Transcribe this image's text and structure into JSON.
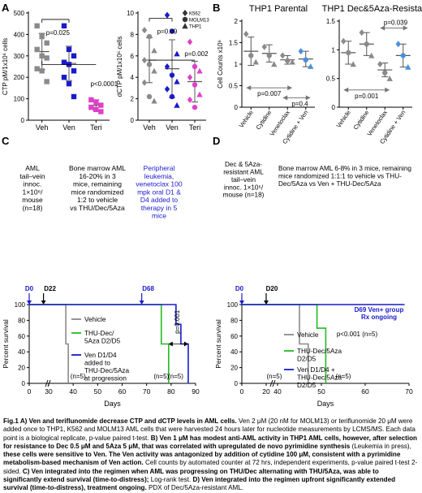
{
  "panels": {
    "A": {
      "letter": "A"
    },
    "B": {
      "letter": "B"
    },
    "C": {
      "letter": "C"
    },
    "D": {
      "letter": "D"
    }
  },
  "colors": {
    "veh": "#8a8a8a",
    "ven": "#1a1acc",
    "teri": "#e040c8",
    "thu": "#22bb22",
    "annot_blue": "#1a1acc"
  },
  "chart_data": [
    {
      "id": "A-left",
      "type": "scatter",
      "ylabel": "CTP pM/1x10⁶ cells",
      "categories": [
        "Veh",
        "Ven",
        "Teri"
      ],
      "ylim": [
        0,
        500
      ],
      "yticks": [
        0,
        100,
        200,
        300,
        400,
        500
      ],
      "series": [
        {
          "category": "Veh",
          "color": "#8a8a8a",
          "marker": "square",
          "values": [
            440,
            390,
            360,
            330,
            300,
            290,
            240,
            230,
            180
          ],
          "mean": 320,
          "sd": 85
        },
        {
          "category": "Ven",
          "color": "#1a1acc",
          "marker": "square",
          "values": [
            440,
            330,
            300,
            270,
            260,
            230,
            200,
            170,
            110
          ],
          "mean": 265,
          "sd": 80
        },
        {
          "category": "Teri",
          "color": "#e040c8",
          "marker": "square",
          "values": [
            95,
            85,
            70,
            60,
            50,
            40
          ],
          "mean": 70,
          "sd": 25
        }
      ],
      "annotations": [
        {
          "text": "p=0.025",
          "x": 1.45,
          "y": 370
        },
        {
          "text": "p<0.0001",
          "x": 2.35,
          "y": 165
        }
      ]
    },
    {
      "id": "A-right",
      "type": "scatter",
      "ylabel": "dCTP pM/1x10⁶ cells",
      "categories": [
        "Veh",
        "Ven",
        "Teri"
      ],
      "ylim": [
        0,
        10
      ],
      "yticks": [
        0,
        2,
        4,
        6,
        8,
        10
      ],
      "legend": [
        {
          "label": "K562",
          "marker": "diamond"
        },
        {
          "label": "MOLM13",
          "marker": "circle"
        },
        {
          "label": "THP1",
          "marker": "triangle"
        }
      ],
      "series": [
        {
          "category": "Veh",
          "color": "#8a8a8a",
          "values": [
            8.4,
            7.8,
            6.5,
            5.6,
            5.2,
            4.6,
            3.5,
            2.2,
            1.8
          ],
          "mean": 5.6,
          "sd": 2.1
        },
        {
          "category": "Ven",
          "color": "#1a1acc",
          "values": [
            9.8,
            8.3,
            6.2,
            5.0,
            4.2,
            3.6,
            2.9,
            2.2,
            1.4
          ],
          "mean": 4.8,
          "sd": 2.7
        },
        {
          "category": "Teri",
          "color": "#e040c8",
          "values": [
            7.3,
            5.0,
            4.6,
            4.0,
            3.3,
            2.4,
            1.9,
            1.2
          ],
          "mean": 3.6,
          "sd": 1.9
        }
      ],
      "annotations": [
        {
          "text": "p=0.09",
          "x": 1.45,
          "y": 8.5
        },
        {
          "text": "p=0.002",
          "x": 2.35,
          "y": 5.8
        }
      ]
    },
    {
      "id": "B-left",
      "type": "scatter",
      "title": "THP1 Parental",
      "ylabel": "Cell Counts x10⁶",
      "categories": [
        "Vehicle",
        "Cytidine",
        "Venetoclax",
        "Cytidine + Ven"
      ],
      "ylim": [
        0,
        2.0
      ],
      "yticks": [
        0,
        0.5,
        1.0,
        1.5,
        2.0
      ],
      "series": [
        {
          "category": "Vehicle",
          "color": "#8a8a8a",
          "values": [
            1.7,
            1.2,
            1.05
          ],
          "mean": 1.3,
          "sd": 0.33
        },
        {
          "category": "Cytidine",
          "color": "#8a8a8a",
          "values": [
            1.4,
            1.2,
            1.0
          ],
          "mean": 1.25,
          "sd": 0.2
        },
        {
          "category": "Venetoclax",
          "color": "#8a8a8a",
          "values": [
            1.2,
            1.08,
            1.05
          ],
          "mean": 1.1,
          "sd": 0.1
        },
        {
          "category": "Cytidine + Ven",
          "color": "#4a90d9",
          "values": [
            1.3,
            1.1,
            0.95
          ],
          "mean": 1.12,
          "sd": 0.18
        }
      ],
      "annotations": [
        {
          "text": "p=0.007"
        },
        {
          "text": "p=0.4"
        }
      ]
    },
    {
      "id": "B-right",
      "type": "scatter",
      "title": "THP1 Dec&5Aza-Resistant",
      "ylabel": "",
      "categories": [
        "Vehicle",
        "Cytidine",
        "Venetoclax",
        "Cytidine + Ven"
      ],
      "ylim": [
        0,
        1.5
      ],
      "yticks": [
        0,
        0.5,
        1.0,
        1.5
      ],
      "series": [
        {
          "category": "Vehicle",
          "color": "#8a8a8a",
          "values": [
            1.15,
            0.95,
            0.75
          ],
          "mean": 0.95,
          "sd": 0.2
        },
        {
          "category": "Cytidine",
          "color": "#8a8a8a",
          "values": [
            1.3,
            1.1,
            0.9
          ],
          "mean": 1.1,
          "sd": 0.2
        },
        {
          "category": "Venetoclax",
          "color": "#8a8a8a",
          "values": [
            0.75,
            0.6,
            0.5
          ],
          "mean": 0.65,
          "sd": 0.12
        },
        {
          "category": "Cytidine + Ven",
          "color": "#4a90d9",
          "values": [
            1.1,
            0.9,
            0.7
          ],
          "mean": 0.9,
          "sd": 0.2
        }
      ],
      "annotations": [
        {
          "text": "p=0.039"
        },
        {
          "text": "p=0.001"
        }
      ]
    },
    {
      "id": "C",
      "type": "line",
      "xlabel": "Days",
      "ylabel": "Percent survival",
      "xlim": [
        0,
        90
      ],
      "ylim": [
        0,
        100
      ],
      "xticks": [
        0,
        30,
        40,
        50,
        60,
        70,
        80,
        90
      ],
      "yticks": [
        0,
        20,
        40,
        60,
        80,
        100
      ],
      "legend": [
        {
          "label": "Vehicle",
          "color": "#8a8a8a"
        },
        {
          "label": "THU-Dec/ 5Aza D2/D5",
          "color": "#22bb22"
        },
        {
          "label": "Ven D1/D4 added to THU-Dec/5Aza at progression",
          "color": "#1a1acc"
        }
      ],
      "series": [
        {
          "name": "Vehicle",
          "color": "#8a8a8a",
          "steps": [
            [
              0,
              100
            ],
            [
              37,
              100
            ],
            [
              37,
              50
            ],
            [
              38,
              50
            ],
            [
              38,
              0
            ]
          ]
        },
        {
          "name": "THU-Dec/ 5Aza D2/D5",
          "color": "#22bb22",
          "steps": [
            [
              0,
              100
            ],
            [
              76,
              100
            ],
            [
              76,
              50
            ],
            [
              79,
              50
            ],
            [
              79,
              0
            ]
          ]
        },
        {
          "name": "Ven D1/D4 added to THU-Dec/5Aza at progression",
          "color": "#1a1acc",
          "steps": [
            [
              0,
              100
            ],
            [
              82,
              100
            ],
            [
              82,
              75
            ],
            [
              84,
              75
            ],
            [
              84,
              50
            ],
            [
              87,
              50
            ],
            [
              87,
              0
            ]
          ]
        }
      ],
      "annotations": [
        {
          "text": "AML tail–vein innoc. 1×10⁶/ mouse (n=18)"
        },
        {
          "text": "Bone marrow AML 16-20% in 3 mice, remaining mice randomized 1:2 to vehicle vs THU/Dec/5Aza"
        },
        {
          "text": "Peripheral leukemia, venetoclax 100 mpk oral D1 & D4 added to therapy in 5 mice"
        },
        {
          "text": "D0"
        },
        {
          "text": "D22"
        },
        {
          "text": "D68"
        },
        {
          "text": "p=0.001"
        },
        {
          "text": "(n=5)"
        },
        {
          "text": "(n=5)"
        },
        {
          "text": "(n=5)"
        }
      ]
    },
    {
      "id": "D",
      "type": "line",
      "xlabel": "Days",
      "ylabel": "Percent survival",
      "xlim": [
        0,
        70
      ],
      "ylim": [
        0,
        100
      ],
      "xticks": [
        0,
        20,
        40,
        50,
        60,
        70
      ],
      "yticks": [
        0,
        20,
        40,
        60,
        80,
        100
      ],
      "legend": [
        {
          "label": "Vehicle",
          "color": "#8a8a8a"
        },
        {
          "label": "THU-Dec/5Aza D2/D5",
          "color": "#22bb22"
        },
        {
          "label": "Ven D1/D4 + THU-Dec/5Aza D2/D5",
          "color": "#1a1acc"
        }
      ],
      "series": [
        {
          "name": "Vehicle",
          "color": "#8a8a8a",
          "steps": [
            [
              0,
              100
            ],
            [
              45,
              100
            ],
            [
              45,
              50
            ],
            [
              47,
              50
            ],
            [
              47,
              0
            ]
          ]
        },
        {
          "name": "THU-Dec/5Aza D2/D5",
          "color": "#22bb22",
          "steps": [
            [
              0,
              100
            ],
            [
              49,
              100
            ],
            [
              49,
              70
            ],
            [
              51,
              70
            ],
            [
              51,
              0
            ]
          ]
        },
        {
          "name": "Ven D1/D4 + THU-Dec/5Aza D2/D5",
          "color": "#1a1acc",
          "steps": [
            [
              0,
              100
            ],
            [
              69,
              100
            ]
          ]
        }
      ],
      "annotations": [
        {
          "text": "Dec & 5Aza- resistant AML tail–vein innoc. 1×10⁶/ mouse (n=18)"
        },
        {
          "text": "Bone marrow AML 6-8% in 3 mice, remaining mice randomized 1:1:1 to vehicle vs THU- Dec/5Aza vs Ven + THU-Dec/5Aza"
        },
        {
          "text": "D0"
        },
        {
          "text": "D20"
        },
        {
          "text": "D69 Ven+ group Rx ongoing"
        },
        {
          "text": "p<0.001 (n=5)"
        },
        {
          "text": "(n=5)"
        },
        {
          "text": "(n=5)"
        }
      ]
    }
  ],
  "caption": {
    "c1": "Fig.1 A) Ven and teriflunomide decrease CTP and dCTP levels in AML cells.",
    "c2": " Ven 2 μM (20 nM for MOLM13) or teriflunomide 20 μM were added once to THP1, K562 and MOLM13 AML cells that were harvested 24 hours later for nucleotide measurements by LCMS/MS. Each data point is a biological replicate, p-value paired t-test. ",
    "c3": "B) Ven 1 μM has modest anti-AML activity in THP1 AML cells, however, after selection for resistance to Dec 0.5 μM and 5Aza 5 μM, that was correlated with upregulated de novo pyrimidine synthesis",
    "c4": " (Leukemia in press), ",
    "c5": "these cells were sensitive to Ven. The Ven activity was antagonized by addition of cytidine 100 μM, consistent with a pyrimidine metabolism-based mechanism of Ven action.",
    "c6": " Cell counts by automated counter at 72 hrs, independent experiments, p-value paired t-test 2-sided. ",
    "c7": "C) Ven integrated into the regimen when AML was progressing on THU/Dec alternating with THU/5Aza, was able to significantly extend survival (time-to-distress);",
    "c8": " Log-rank test. ",
    "c9": "D) Ven integrated into the regimen upfront significantly extended survival (time-to-distress), treatment ongoing.",
    "c10": " PDX of Dec/5Aza-resistant AML."
  }
}
